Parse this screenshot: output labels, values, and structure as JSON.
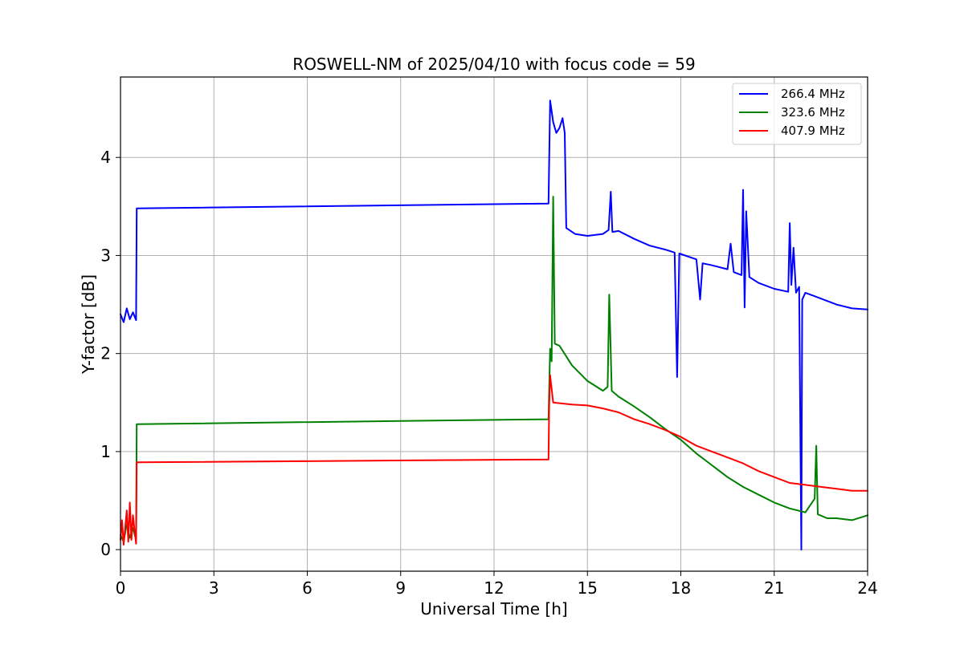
{
  "chart_data": {
    "type": "line",
    "title": "ROSWELL-NM of 2025/04/10 with focus code = 59",
    "xlabel": "Universal Time [h]",
    "ylabel": "Y-factor [dB]",
    "xlim": [
      0,
      24
    ],
    "ylim": [
      -0.22,
      4.82
    ],
    "xticks": [
      0,
      3,
      6,
      9,
      12,
      15,
      18,
      21,
      24
    ],
    "yticks": [
      0,
      1,
      2,
      3,
      4
    ],
    "xtick_labels": [
      "0",
      "3",
      "6",
      "9",
      "12",
      "15",
      "18",
      "21",
      "24"
    ],
    "ytick_labels": [
      "0",
      "1",
      "2",
      "3",
      "4"
    ],
    "grid": true,
    "legend_position": "top-right",
    "series": [
      {
        "name": "266.4 MHz",
        "color": "#0000ff",
        "points": [
          [
            0.0,
            2.4
          ],
          [
            0.1,
            2.32
          ],
          [
            0.2,
            2.46
          ],
          [
            0.3,
            2.35
          ],
          [
            0.4,
            2.42
          ],
          [
            0.5,
            2.34
          ],
          [
            0.52,
            3.48
          ],
          [
            13.75,
            3.53
          ],
          [
            13.8,
            4.58
          ],
          [
            13.9,
            4.36
          ],
          [
            14.0,
            4.25
          ],
          [
            14.1,
            4.3
          ],
          [
            14.2,
            4.4
          ],
          [
            14.27,
            4.25
          ],
          [
            14.32,
            3.28
          ],
          [
            14.6,
            3.22
          ],
          [
            15.0,
            3.2
          ],
          [
            15.5,
            3.22
          ],
          [
            15.68,
            3.26
          ],
          [
            15.75,
            3.65
          ],
          [
            15.8,
            3.24
          ],
          [
            16.0,
            3.25
          ],
          [
            16.5,
            3.17
          ],
          [
            17.0,
            3.1
          ],
          [
            17.5,
            3.06
          ],
          [
            17.8,
            3.03
          ],
          [
            17.88,
            1.76
          ],
          [
            17.95,
            3.02
          ],
          [
            18.5,
            2.96
          ],
          [
            18.62,
            2.55
          ],
          [
            18.7,
            2.92
          ],
          [
            19.0,
            2.9
          ],
          [
            19.5,
            2.86
          ],
          [
            19.6,
            3.12
          ],
          [
            19.7,
            2.83
          ],
          [
            19.95,
            2.8
          ],
          [
            20.0,
            3.67
          ],
          [
            20.05,
            2.47
          ],
          [
            20.1,
            3.45
          ],
          [
            20.2,
            2.78
          ],
          [
            20.5,
            2.72
          ],
          [
            21.0,
            2.66
          ],
          [
            21.45,
            2.63
          ],
          [
            21.5,
            3.33
          ],
          [
            21.55,
            2.7
          ],
          [
            21.62,
            3.08
          ],
          [
            21.7,
            2.62
          ],
          [
            21.8,
            2.68
          ],
          [
            21.87,
            0.0
          ],
          [
            21.9,
            2.55
          ],
          [
            22.0,
            2.62
          ],
          [
            22.5,
            2.56
          ],
          [
            23.0,
            2.5
          ],
          [
            23.5,
            2.46
          ],
          [
            24.0,
            2.45
          ]
        ]
      },
      {
        "name": "323.6 MHz",
        "color": "#008000",
        "points": [
          [
            0.0,
            0.15
          ],
          [
            0.1,
            0.08
          ],
          [
            0.2,
            0.26
          ],
          [
            0.3,
            0.12
          ],
          [
            0.4,
            0.22
          ],
          [
            0.5,
            0.1
          ],
          [
            0.52,
            1.28
          ],
          [
            13.75,
            1.33
          ],
          [
            13.8,
            2.05
          ],
          [
            13.85,
            1.92
          ],
          [
            13.9,
            3.6
          ],
          [
            13.95,
            2.1
          ],
          [
            14.1,
            2.08
          ],
          [
            14.5,
            1.88
          ],
          [
            15.0,
            1.72
          ],
          [
            15.5,
            1.62
          ],
          [
            15.65,
            1.66
          ],
          [
            15.7,
            2.6
          ],
          [
            15.78,
            1.62
          ],
          [
            16.0,
            1.56
          ],
          [
            16.5,
            1.46
          ],
          [
            17.0,
            1.35
          ],
          [
            17.5,
            1.23
          ],
          [
            18.0,
            1.12
          ],
          [
            18.5,
            0.98
          ],
          [
            19.0,
            0.86
          ],
          [
            19.5,
            0.74
          ],
          [
            20.0,
            0.64
          ],
          [
            20.5,
            0.56
          ],
          [
            21.0,
            0.48
          ],
          [
            21.5,
            0.42
          ],
          [
            22.0,
            0.38
          ],
          [
            22.3,
            0.52
          ],
          [
            22.35,
            1.06
          ],
          [
            22.4,
            0.36
          ],
          [
            22.7,
            0.32
          ],
          [
            23.0,
            0.32
          ],
          [
            23.5,
            0.3
          ],
          [
            24.0,
            0.35
          ]
        ]
      },
      {
        "name": "407.9 MHz",
        "color": "#ff0000",
        "points": [
          [
            0.0,
            0.1
          ],
          [
            0.05,
            0.3
          ],
          [
            0.1,
            0.05
          ],
          [
            0.2,
            0.4
          ],
          [
            0.25,
            0.08
          ],
          [
            0.3,
            0.48
          ],
          [
            0.35,
            0.1
          ],
          [
            0.4,
            0.35
          ],
          [
            0.5,
            0.06
          ],
          [
            0.52,
            0.89
          ],
          [
            13.75,
            0.92
          ],
          [
            13.77,
            1.45
          ],
          [
            13.8,
            1.78
          ],
          [
            13.9,
            1.5
          ],
          [
            14.5,
            1.48
          ],
          [
            15.0,
            1.47
          ],
          [
            15.5,
            1.44
          ],
          [
            16.0,
            1.4
          ],
          [
            16.5,
            1.33
          ],
          [
            17.0,
            1.28
          ],
          [
            17.5,
            1.22
          ],
          [
            18.0,
            1.15
          ],
          [
            18.5,
            1.06
          ],
          [
            19.0,
            1.0
          ],
          [
            19.5,
            0.94
          ],
          [
            20.0,
            0.88
          ],
          [
            20.5,
            0.8
          ],
          [
            21.0,
            0.74
          ],
          [
            21.5,
            0.68
          ],
          [
            22.0,
            0.66
          ],
          [
            22.5,
            0.64
          ],
          [
            23.0,
            0.62
          ],
          [
            23.5,
            0.6
          ],
          [
            24.0,
            0.6
          ]
        ]
      }
    ]
  }
}
